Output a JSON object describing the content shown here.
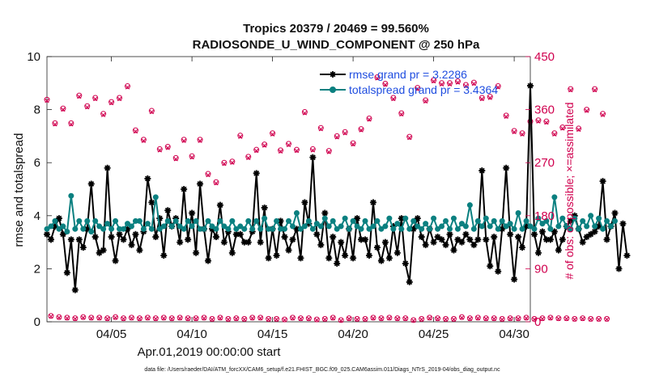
{
  "chart_data": {
    "type": "line",
    "title": "Tropics 20379 / 20469 = 99.560%",
    "subtitle": "RADIOSONDE_U_WIND_COMPONENT @ 250 hPa",
    "xlabel": "Apr.01,2019 00:00:00 start",
    "ylabel": "rmse and totalspread",
    "ylabel_right": "# of obs: o=possible; ×=assimilated",
    "xlim": [
      1,
      31
    ],
    "ylim": [
      0,
      10
    ],
    "ylim_right": [
      0,
      450
    ],
    "x_tick_values": [
      5,
      10,
      15,
      20,
      25,
      30
    ],
    "x_tick_labels": [
      "04/05",
      "04/10",
      "04/15",
      "04/20",
      "04/25",
      "04/30"
    ],
    "y_ticks": [
      "0",
      "2",
      "4",
      "6",
      "8",
      "10"
    ],
    "y_tick_values": [
      0,
      2,
      4,
      6,
      8,
      10
    ],
    "y_right_ticks": [
      "0",
      "90",
      "180",
      "270",
      "360",
      "450"
    ],
    "y_right_tick_values": [
      0,
      90,
      180,
      270,
      360,
      450
    ],
    "legend": [
      "rmse grand pr = 3.2286",
      "totalspread grand pr = 3.4364"
    ],
    "x_step": 0.25,
    "series": [
      {
        "name": "rmse",
        "color": "#000000",
        "values": [
          3.3,
          3.1,
          3.6,
          3.9,
          3.3,
          1.85,
          3.1,
          1.2,
          3.1,
          2.8,
          3.5,
          5.2,
          3.2,
          2.6,
          2.7,
          5.8,
          3.2,
          2.3,
          3.3,
          3.1,
          3.5,
          2.9,
          3.3,
          2.7,
          3.4,
          5.4,
          4.5,
          3.2,
          3.9,
          2.5,
          4.2,
          3.6,
          3.9,
          3.0,
          5.0,
          3.1,
          4.1,
          2.6,
          5.2,
          3.5,
          2.3,
          3.5,
          3.2,
          4.4,
          3.0,
          3.4,
          2.6,
          3.3,
          3.3,
          3.0,
          3.0,
          3.4,
          5.6,
          3.0,
          4.3,
          2.4,
          3.5,
          2.5,
          3.8,
          3.2,
          2.7,
          3.1,
          3.5,
          2.4,
          4.5,
          3.7,
          6.2,
          3.3,
          2.9,
          4.1,
          2.4,
          3.2,
          2.2,
          3.0,
          2.5,
          3.5,
          2.4,
          3.9,
          3.1,
          3.1,
          2.5,
          4.5,
          2.8,
          2.3,
          3.0,
          2.4,
          3.6,
          2.6,
          3.9,
          2.2,
          1.5,
          3.5,
          3.9,
          3.2,
          2.9,
          3.5,
          3.0,
          3.2,
          3.1,
          2.9,
          3.3,
          2.7,
          3.1,
          3.0,
          3.3,
          3.1,
          2.9,
          3.1,
          5.7,
          3.1,
          2.1,
          3.2,
          1.9,
          3.5,
          5.8,
          3.3,
          1.6,
          3.2,
          2.8,
          3.6,
          8.9,
          3.3,
          2.6,
          3.4,
          3.1,
          3.1,
          3.4,
          2.7,
          3.1,
          3.6,
          3.8,
          4.0,
          3.5,
          3.0,
          3.2,
          3.3,
          3.4,
          3.6,
          5.3,
          3.1,
          3.6,
          4.1,
          2.0,
          3.7,
          2.5
        ]
      },
      {
        "name": "totalspread",
        "color": "#0b8080",
        "values": [
          3.5,
          3.6,
          3.8,
          3.5,
          3.6,
          3.4,
          4.75,
          3.5,
          3.8,
          3.5,
          3.8,
          3.4,
          3.8,
          3.6,
          3.5,
          3.7,
          3.5,
          3.8,
          3.5,
          3.5,
          3.7,
          3.6,
          3.8,
          3.8,
          3.5,
          3.7,
          3.5,
          4.7,
          3.5,
          3.6,
          3.8,
          3.6,
          3.8,
          3.6,
          3.5,
          3.8,
          3.6,
          3.8,
          3.5,
          3.5,
          3.8,
          3.6,
          3.5,
          3.8,
          3.6,
          3.5,
          3.8,
          3.5,
          3.6,
          3.5,
          3.8,
          3.5,
          3.8,
          3.5,
          3.9,
          3.5,
          3.5,
          3.8,
          3.5,
          3.5,
          3.8,
          3.6,
          4.1,
          3.5,
          3.6,
          3.8,
          3.5,
          3.7,
          3.6,
          3.9,
          3.6,
          3.8,
          3.5,
          3.6,
          3.9,
          3.5,
          3.8,
          3.6,
          3.5,
          3.8,
          3.5,
          3.6,
          3.8,
          3.5,
          3.6,
          3.9,
          3.5,
          3.7,
          3.5,
          3.9,
          3.5,
          3.8,
          3.6,
          3.5,
          3.7,
          3.5,
          3.9,
          3.5,
          3.6,
          3.8,
          3.5,
          3.9,
          3.5,
          3.7,
          3.6,
          4.4,
          3.5,
          3.8,
          3.6,
          3.9,
          3.6,
          3.8,
          3.5,
          3.8,
          3.6,
          3.7,
          3.5,
          4.1,
          3.5,
          3.8,
          3.6,
          3.5,
          3.9,
          3.7,
          3.8,
          3.5,
          4.7,
          3.6,
          3.9,
          3.6,
          3.5,
          3.9,
          3.5,
          3.8,
          3.6,
          4.0,
          3.6,
          3.9,
          3.5,
          3.8,
          3.6,
          3.8
        ]
      },
      {
        "name": "possible",
        "color": "#d0004e",
        "marker": "circle",
        "values": [
          377,
          10,
          337,
          8,
          362,
          7,
          337,
          6,
          384,
          8,
          366,
          7,
          380,
          7,
          353,
          6,
          373,
          8,
          380,
          6,
          400,
          7,
          325,
          6,
          309,
          7,
          358,
          6,
          293,
          7,
          297,
          6,
          278,
          7,
          309,
          6,
          281,
          6,
          309,
          7,
          251,
          5,
          237,
          7,
          270,
          5,
          272,
          6,
          316,
          5,
          280,
          7,
          292,
          7,
          301,
          5,
          320,
          5,
          291,
          4,
          302,
          7,
          292,
          6,
          356,
          6,
          293,
          4,
          329,
          5,
          290,
          7,
          315,
          3,
          322,
          6,
          303,
          5,
          327,
          5,
          345,
          7,
          415,
          6,
          404,
          7,
          380,
          6,
          354,
          6,
          314,
          3,
          397,
          5,
          376,
          7,
          410,
          6,
          405,
          5,
          405,
          5,
          408,
          8,
          402,
          6,
          406,
          7,
          380,
          6,
          382,
          6,
          400,
          5,
          350,
          6,
          324,
          6,
          320,
          7,
          340,
          5,
          342,
          6,
          340,
          7,
          320,
          6,
          330,
          6,
          395,
          5,
          328,
          6,
          360,
          5,
          395,
          5,
          353,
          5
        ]
      },
      {
        "name": "assimilated",
        "color": "#d0004e",
        "marker": "x",
        "values": [
          375,
          9,
          335,
          7,
          360,
          6,
          335,
          5,
          382,
          7,
          364,
          6,
          378,
          6,
          351,
          5,
          371,
          7,
          378,
          5,
          398,
          6,
          323,
          5,
          307,
          6,
          356,
          5,
          291,
          6,
          295,
          5,
          276,
          6,
          307,
          5,
          279,
          5,
          307,
          6,
          249,
          4,
          235,
          6,
          268,
          4,
          270,
          5,
          314,
          4,
          278,
          6,
          290,
          6,
          299,
          4,
          318,
          4,
          289,
          3,
          300,
          6,
          290,
          5,
          354,
          5,
          291,
          3,
          327,
          4,
          288,
          6,
          313,
          2,
          320,
          5,
          301,
          4,
          325,
          4,
          343,
          6,
          413,
          5,
          402,
          6,
          378,
          5,
          352,
          5,
          312,
          2,
          395,
          4,
          374,
          6,
          408,
          5,
          403,
          4,
          403,
          4,
          406,
          7,
          400,
          5,
          404,
          6,
          378,
          5,
          380,
          5,
          398,
          4,
          348,
          5,
          322,
          5,
          318,
          6,
          338,
          4,
          340,
          5,
          338,
          6,
          318,
          5,
          328,
          5,
          393,
          4,
          326,
          5,
          358,
          4,
          393,
          4,
          351,
          4
        ]
      }
    ]
  },
  "footer": {
    "data_file": "data file: /Users/raeder/DAI/ATM_forcXX/CAM6_setup/f.e21.FHIST_BGC.f09_025.CAM6assim.011/Diags_NTrS_2019-04/obs_diag_output.nc"
  }
}
